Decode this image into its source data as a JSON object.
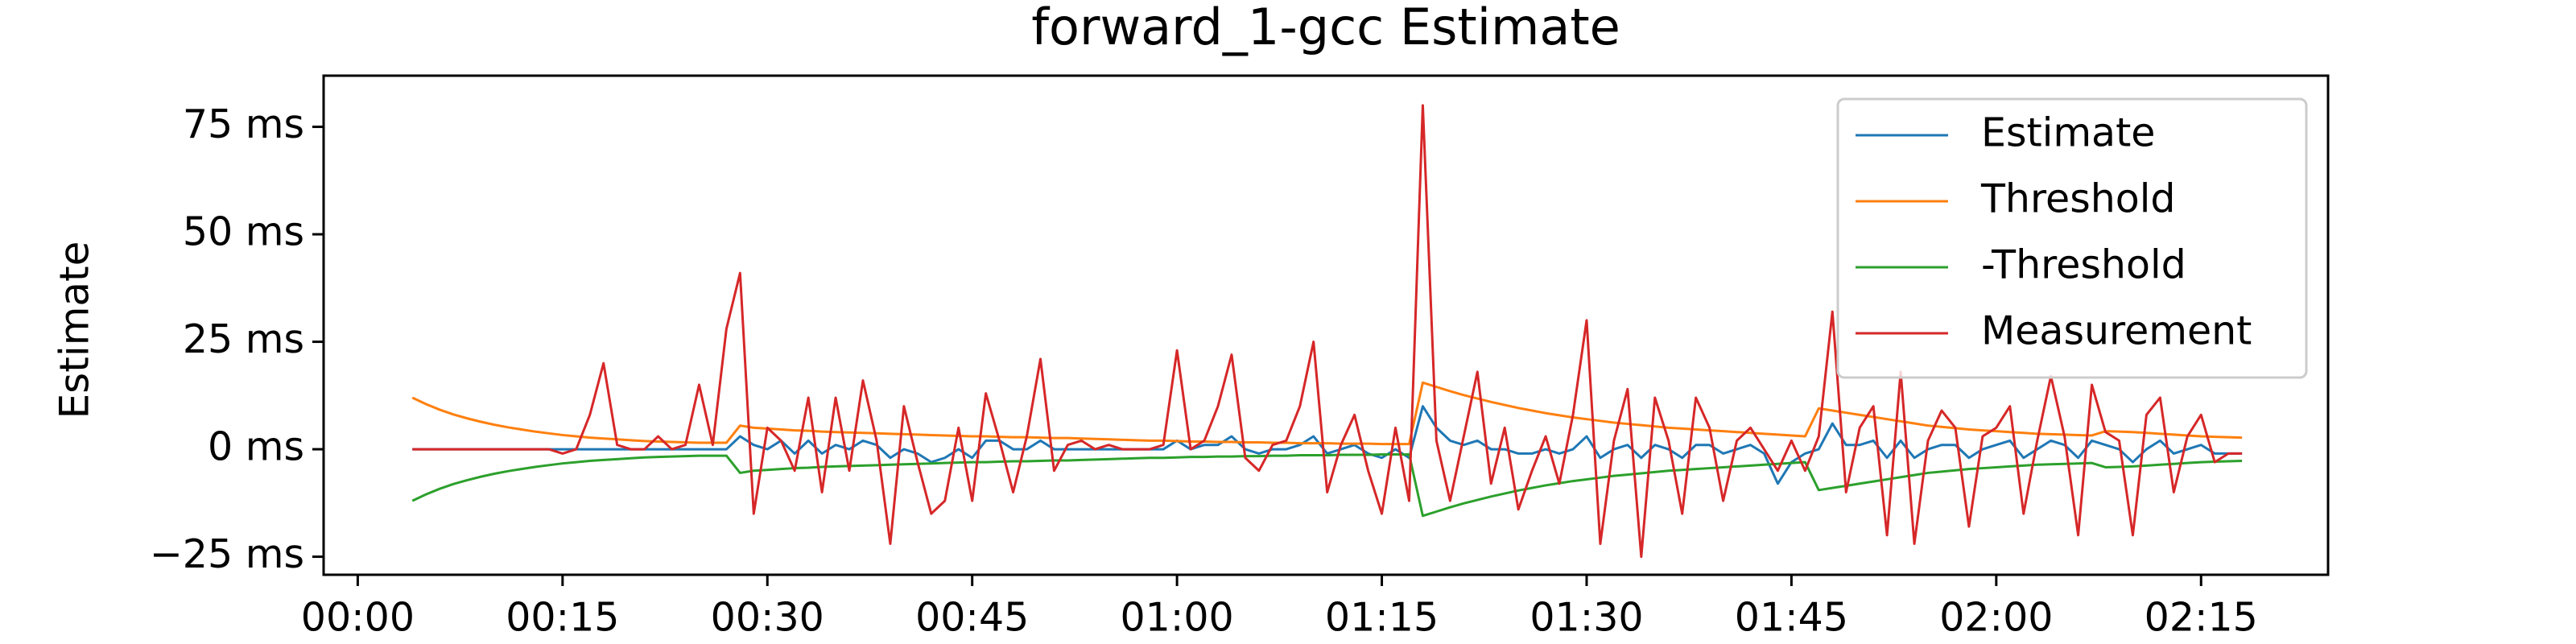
{
  "chart_data": {
    "type": "line",
    "title": "forward_1-gcc Estimate",
    "y_label": "Estimate",
    "x": [
      4,
      5,
      6,
      7,
      8,
      9,
      10,
      11,
      12,
      13,
      14,
      15,
      16,
      17,
      18,
      19,
      20,
      21,
      22,
      23,
      24,
      25,
      26,
      27,
      28,
      29,
      30,
      31,
      32,
      33,
      34,
      35,
      36,
      37,
      38,
      39,
      40,
      41,
      42,
      43,
      44,
      45,
      46,
      47,
      48,
      49,
      50,
      51,
      52,
      53,
      54,
      55,
      56,
      57,
      58,
      59,
      60,
      61,
      62,
      63,
      64,
      65,
      66,
      67,
      68,
      69,
      70,
      71,
      72,
      73,
      74,
      75,
      76,
      77,
      78,
      79,
      80,
      81,
      82,
      83,
      84,
      85,
      86,
      87,
      88,
      89,
      90,
      91,
      92,
      93,
      94,
      95,
      96,
      97,
      98,
      99,
      100,
      101,
      102,
      103,
      104,
      105,
      106,
      107,
      108,
      109,
      110,
      111,
      112,
      113,
      114,
      115,
      116,
      117,
      118,
      119,
      120,
      121,
      122,
      123,
      124,
      125,
      126,
      127,
      128,
      129,
      130,
      131,
      132,
      133,
      134,
      135,
      136,
      137,
      138
    ],
    "series": [
      {
        "name": "Estimate",
        "color": "#1f77b4",
        "values": [
          0,
          0,
          0,
          0,
          0,
          0,
          0,
          0,
          0,
          0,
          0,
          0,
          0,
          0,
          0,
          0,
          0,
          0,
          0,
          0,
          0,
          0,
          0,
          0,
          3,
          1,
          0,
          2,
          -1,
          2,
          -1,
          1,
          0,
          2,
          1,
          -2,
          0,
          -1,
          -3,
          -2,
          0,
          -2,
          2,
          2,
          0,
          0,
          2,
          0,
          0,
          0,
          0,
          0,
          0,
          0,
          0,
          0,
          2,
          0,
          1,
          1,
          3,
          0,
          -1,
          0,
          0,
          1,
          3,
          -1,
          0,
          1,
          -1,
          -2,
          0,
          -2,
          10,
          5,
          2,
          1,
          2,
          0,
          0,
          -1,
          -1,
          0,
          -1,
          0,
          3,
          -2,
          0,
          1,
          -2,
          1,
          0,
          -2,
          1,
          1,
          -1,
          0,
          1,
          -1,
          -8,
          -3,
          -1,
          0,
          6,
          1,
          1,
          2,
          -2,
          2,
          -2,
          0,
          1,
          1,
          -2,
          0,
          1,
          2,
          -2,
          0,
          2,
          1,
          -2,
          2,
          1,
          0,
          -3,
          0,
          2,
          -1,
          0,
          1,
          -1,
          -1,
          -1
        ]
      },
      {
        "name": "Threshold",
        "color": "#ff7f0e",
        "values": [
          12,
          10.5,
          9.2,
          8.1,
          7.2,
          6.4,
          5.7,
          5.1,
          4.6,
          4.1,
          3.7,
          3.3,
          3,
          2.7,
          2.5,
          2.3,
          2.1,
          1.9,
          1.8,
          1.7,
          1.6,
          1.5,
          1.5,
          1.5,
          5.5,
          5,
          4.8,
          4.6,
          4.4,
          4.3,
          4.1,
          4,
          3.9,
          3.8,
          3.7,
          3.6,
          3.5,
          3.4,
          3.3,
          3.2,
          3.1,
          3,
          3,
          2.9,
          2.8,
          2.8,
          2.7,
          2.6,
          2.6,
          2.5,
          2.4,
          2.3,
          2.2,
          2.1,
          2,
          2,
          1.9,
          1.8,
          1.8,
          1.7,
          1.7,
          1.6,
          1.6,
          1.5,
          1.5,
          1.4,
          1.4,
          1.4,
          1.3,
          1.3,
          1.3,
          1.2,
          1.2,
          1.2,
          15.5,
          14.5,
          13.5,
          12.6,
          11.8,
          11,
          10.3,
          9.6,
          9,
          8.4,
          7.9,
          7.4,
          7,
          6.6,
          6.2,
          5.9,
          5.6,
          5.3,
          5,
          4.8,
          4.6,
          4.4,
          4.2,
          4,
          3.8,
          3.6,
          3.4,
          3.2,
          3,
          9.5,
          9,
          8.5,
          8,
          7.5,
          7,
          6.5,
          6,
          5.5,
          5.2,
          4.9,
          4.6,
          4.4,
          4.2,
          4,
          3.8,
          3.6,
          3.5,
          3.4,
          3.3,
          3.2,
          4.2,
          4.1,
          4,
          3.8,
          3.6,
          3.4,
          3.2,
          3,
          2.9,
          2.8,
          2.7
        ]
      },
      {
        "name": "-Threshold",
        "color": "#2ca02c",
        "values": [
          -12,
          -10.5,
          -9.2,
          -8.1,
          -7.2,
          -6.4,
          -5.7,
          -5.1,
          -4.6,
          -4.1,
          -3.7,
          -3.3,
          -3,
          -2.7,
          -2.5,
          -2.3,
          -2.1,
          -1.9,
          -1.8,
          -1.7,
          -1.6,
          -1.5,
          -1.5,
          -1.5,
          -5.5,
          -5,
          -4.8,
          -4.6,
          -4.4,
          -4.3,
          -4.1,
          -4,
          -3.9,
          -3.8,
          -3.7,
          -3.6,
          -3.5,
          -3.4,
          -3.3,
          -3.2,
          -3.1,
          -3,
          -3,
          -2.9,
          -2.8,
          -2.8,
          -2.7,
          -2.6,
          -2.6,
          -2.5,
          -2.4,
          -2.3,
          -2.2,
          -2.1,
          -2,
          -2,
          -1.9,
          -1.8,
          -1.8,
          -1.7,
          -1.7,
          -1.6,
          -1.6,
          -1.5,
          -1.5,
          -1.4,
          -1.4,
          -1.4,
          -1.3,
          -1.3,
          -1.3,
          -1.2,
          -1.2,
          -1.2,
          -15.5,
          -14.5,
          -13.5,
          -12.6,
          -11.8,
          -11,
          -10.3,
          -9.6,
          -9,
          -8.4,
          -7.9,
          -7.4,
          -7,
          -6.6,
          -6.2,
          -5.9,
          -5.6,
          -5.3,
          -5,
          -4.8,
          -4.6,
          -4.4,
          -4.2,
          -4,
          -3.8,
          -3.6,
          -3.4,
          -3.2,
          -3,
          -9.5,
          -9,
          -8.5,
          -8,
          -7.5,
          -7,
          -6.5,
          -6,
          -5.5,
          -5.2,
          -4.9,
          -4.6,
          -4.4,
          -4.2,
          -4,
          -3.8,
          -3.6,
          -3.5,
          -3.4,
          -3.3,
          -3.2,
          -4.2,
          -4.1,
          -4,
          -3.8,
          -3.6,
          -3.4,
          -3.2,
          -3,
          -2.9,
          -2.8,
          -2.7
        ]
      },
      {
        "name": "Measurement",
        "color": "#d62728",
        "values": [
          0,
          0,
          0,
          0,
          0,
          0,
          0,
          0,
          0,
          0,
          0,
          -1,
          0,
          8,
          20,
          1,
          0,
          0,
          3,
          0,
          1,
          15,
          1,
          28,
          41,
          -15,
          5,
          2,
          -5,
          12,
          -10,
          12,
          -5,
          16,
          2,
          -22,
          10,
          -3,
          -15,
          -12,
          5,
          -12,
          13,
          2,
          -10,
          3,
          21,
          -5,
          1,
          2,
          0,
          1,
          0,
          0,
          0,
          1,
          23,
          0,
          2,
          10,
          22,
          -2,
          -5,
          1,
          2,
          10,
          25,
          -10,
          1,
          8,
          -5,
          -15,
          5,
          -12,
          80,
          2,
          -12,
          3,
          18,
          -8,
          5,
          -14,
          -5,
          3,
          -8,
          8,
          30,
          -22,
          2,
          14,
          -25,
          12,
          2,
          -15,
          12,
          5,
          -12,
          2,
          5,
          0,
          -5,
          2,
          -5,
          3,
          32,
          -10,
          5,
          10,
          -20,
          18,
          -22,
          2,
          9,
          5,
          -18,
          3,
          5,
          10,
          -15,
          2,
          17,
          3,
          -20,
          15,
          4,
          2,
          -20,
          8,
          12,
          -10,
          3,
          8,
          -3,
          -1,
          -1
        ]
      }
    ],
    "xlim": [
      -2.5,
      144.3
    ],
    "ylim": [
      -29.2,
      86.9
    ],
    "xticks": [
      {
        "value": 0,
        "label": "00:00"
      },
      {
        "value": 15,
        "label": "00:15"
      },
      {
        "value": 30,
        "label": "00:30"
      },
      {
        "value": 45,
        "label": "00:45"
      },
      {
        "value": 60,
        "label": "01:00"
      },
      {
        "value": 75,
        "label": "01:15"
      },
      {
        "value": 90,
        "label": "01:30"
      },
      {
        "value": 105,
        "label": "01:45"
      },
      {
        "value": 120,
        "label": "02:00"
      },
      {
        "value": 135,
        "label": "02:15"
      }
    ],
    "yticks": [
      {
        "value": -25,
        "label": "−25 ms"
      },
      {
        "value": 0,
        "label": "0 ms"
      },
      {
        "value": 25,
        "label": "25 ms"
      },
      {
        "value": 50,
        "label": "50 ms"
      },
      {
        "value": 75,
        "label": "75 ms"
      }
    ],
    "grid": false,
    "legend": "upper right"
  }
}
